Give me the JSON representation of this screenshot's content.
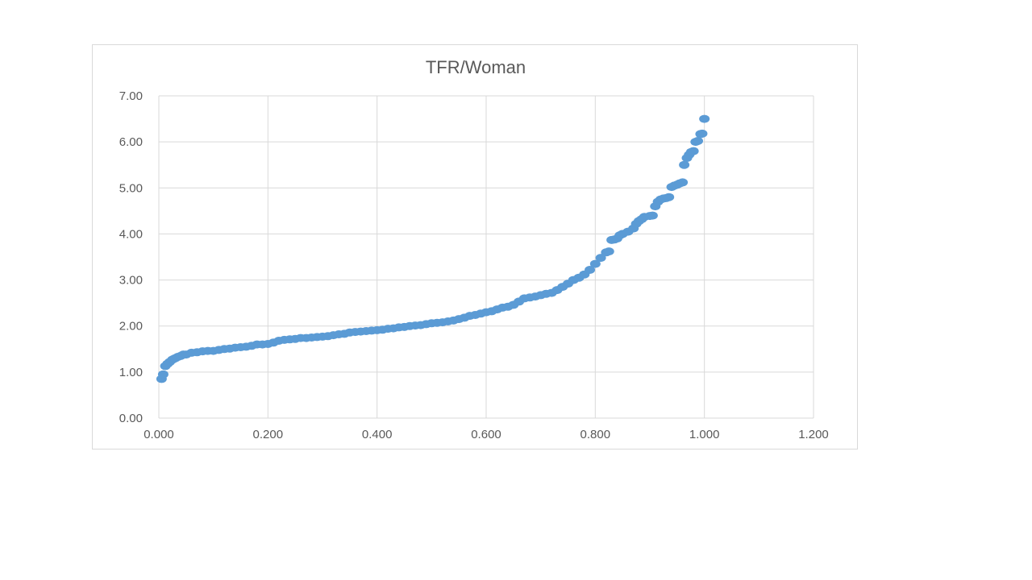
{
  "chart_data": {
    "type": "scatter",
    "title": "TFR/Woman",
    "xlabel": "",
    "ylabel": "",
    "xlim": [
      0,
      1.2
    ],
    "ylim": [
      0,
      7
    ],
    "x_ticks": [
      "0.000",
      "0.200",
      "0.400",
      "0.600",
      "0.800",
      "1.000",
      "1.200"
    ],
    "y_ticks": [
      "0.00",
      "1.00",
      "2.00",
      "3.00",
      "4.00",
      "5.00",
      "6.00",
      "7.00"
    ],
    "grid": true,
    "legend": "none",
    "marker_color": "#5b9bd5",
    "series": [
      {
        "x": [
          0.005,
          0.008,
          0.012,
          0.016,
          0.02,
          0.025,
          0.03,
          0.035,
          0.04,
          0.045,
          0.05,
          0.06,
          0.07,
          0.08,
          0.09,
          0.1,
          0.11,
          0.12,
          0.13,
          0.14,
          0.15,
          0.16,
          0.17,
          0.18,
          0.19,
          0.2,
          0.21,
          0.22,
          0.23,
          0.24,
          0.25,
          0.26,
          0.27,
          0.28,
          0.29,
          0.3,
          0.31,
          0.32,
          0.33,
          0.34,
          0.35,
          0.36,
          0.37,
          0.38,
          0.39,
          0.4,
          0.41,
          0.42,
          0.43,
          0.44,
          0.45,
          0.46,
          0.47,
          0.48,
          0.49,
          0.5,
          0.51,
          0.52,
          0.53,
          0.54,
          0.55,
          0.56,
          0.57,
          0.58,
          0.59,
          0.6,
          0.61,
          0.62,
          0.63,
          0.64,
          0.65,
          0.66,
          0.67,
          0.68,
          0.69,
          0.7,
          0.71,
          0.72,
          0.73,
          0.74,
          0.75,
          0.76,
          0.77,
          0.78,
          0.79,
          0.8,
          0.81,
          0.82,
          0.825,
          0.83,
          0.835,
          0.84,
          0.845,
          0.85,
          0.86,
          0.87,
          0.875,
          0.88,
          0.885,
          0.89,
          0.9,
          0.905,
          0.91,
          0.915,
          0.92,
          0.925,
          0.93,
          0.935,
          0.94,
          0.945,
          0.95,
          0.955,
          0.96,
          0.963,
          0.968,
          0.972,
          0.976,
          0.98,
          0.984,
          0.988,
          0.993,
          0.996,
          1.0
        ],
        "y": [
          0.85,
          0.95,
          1.13,
          1.18,
          1.22,
          1.27,
          1.3,
          1.33,
          1.35,
          1.38,
          1.38,
          1.42,
          1.43,
          1.45,
          1.46,
          1.46,
          1.48,
          1.5,
          1.51,
          1.53,
          1.54,
          1.55,
          1.57,
          1.6,
          1.6,
          1.61,
          1.64,
          1.68,
          1.7,
          1.71,
          1.72,
          1.74,
          1.74,
          1.75,
          1.76,
          1.77,
          1.78,
          1.8,
          1.82,
          1.83,
          1.86,
          1.87,
          1.88,
          1.89,
          1.9,
          1.91,
          1.92,
          1.94,
          1.95,
          1.97,
          1.98,
          2.0,
          2.01,
          2.02,
          2.04,
          2.06,
          2.07,
          2.08,
          2.1,
          2.12,
          2.15,
          2.18,
          2.22,
          2.24,
          2.27,
          2.3,
          2.32,
          2.36,
          2.4,
          2.42,
          2.46,
          2.53,
          2.6,
          2.62,
          2.64,
          2.67,
          2.7,
          2.72,
          2.78,
          2.85,
          2.92,
          3.0,
          3.05,
          3.12,
          3.22,
          3.35,
          3.48,
          3.6,
          3.62,
          3.87,
          3.88,
          3.9,
          3.97,
          4.0,
          4.05,
          4.12,
          4.22,
          4.28,
          4.32,
          4.37,
          4.39,
          4.4,
          4.6,
          4.7,
          4.75,
          4.77,
          4.78,
          4.8,
          5.02,
          5.05,
          5.07,
          5.1,
          5.12,
          5.5,
          5.65,
          5.72,
          5.78,
          5.8,
          6.0,
          6.02,
          6.17,
          6.18,
          6.5
        ]
      }
    ]
  }
}
